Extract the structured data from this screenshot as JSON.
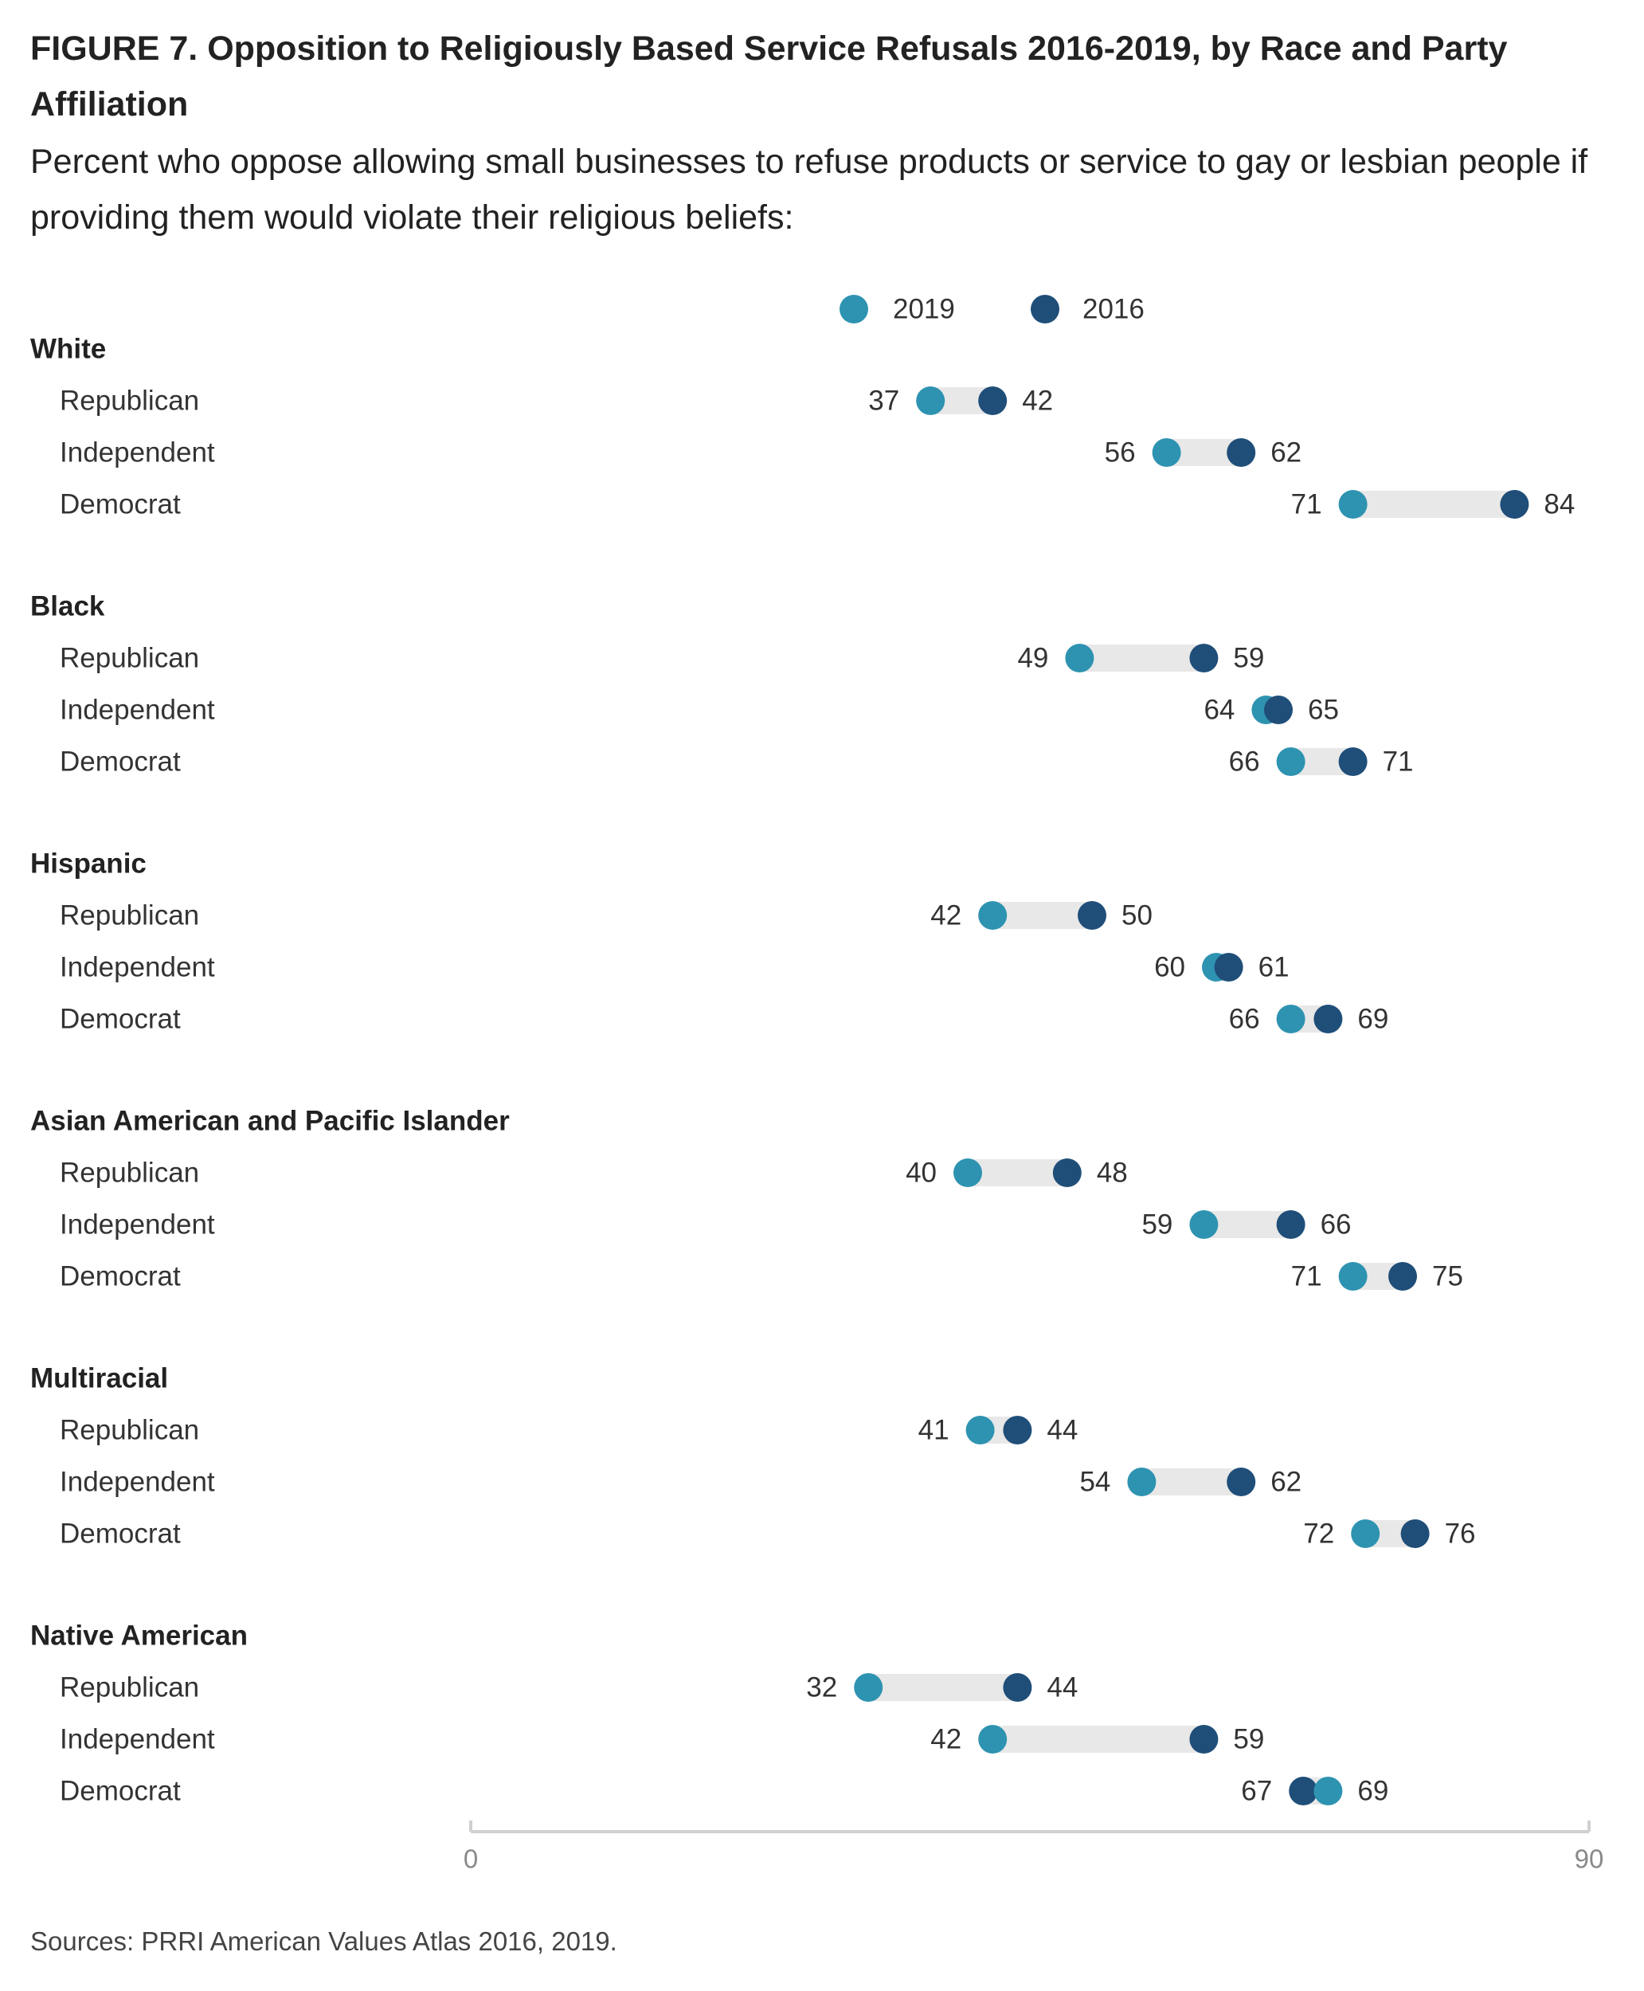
{
  "title": "FIGURE 7. Opposition to Religiously Based Service Refusals 2016-2019, by Race and Party Affiliation",
  "subtitle": "Percent who oppose allowing small businesses to refuse products or service to gay or lesbian people if providing them would violate their religious beliefs:",
  "source": "Sources: PRRI American Values Atlas 2016, 2019.",
  "colors": {
    "y2019": "#2e93b1",
    "y2016": "#1f4e79",
    "bar": "#e8e8e8",
    "axis": "#d0d0d0"
  },
  "chart_data": {
    "type": "dumbbell",
    "xlim": [
      0,
      90
    ],
    "x_ticks": [
      0,
      90
    ],
    "legend": {
      "placement": "top",
      "entries": [
        "2019",
        "2016"
      ]
    },
    "series_names": [
      "2019",
      "2016"
    ],
    "groups": [
      {
        "label": "White",
        "rows": [
          {
            "label": "Republican",
            "v2019": 37,
            "v2016": 42
          },
          {
            "label": "Independent",
            "v2019": 56,
            "v2016": 62
          },
          {
            "label": "Democrat",
            "v2019": 71,
            "v2016": 84
          }
        ]
      },
      {
        "label": "Black",
        "rows": [
          {
            "label": "Republican",
            "v2019": 49,
            "v2016": 59
          },
          {
            "label": "Independent",
            "v2019": 64,
            "v2016": 65
          },
          {
            "label": "Democrat",
            "v2019": 66,
            "v2016": 71
          }
        ]
      },
      {
        "label": "Hispanic",
        "rows": [
          {
            "label": "Republican",
            "v2019": 42,
            "v2016": 50
          },
          {
            "label": "Independent",
            "v2019": 60,
            "v2016": 61
          },
          {
            "label": "Democrat",
            "v2019": 66,
            "v2016": 69
          }
        ]
      },
      {
        "label": "Asian American and Pacific Islander",
        "rows": [
          {
            "label": "Republican",
            "v2019": 40,
            "v2016": 48
          },
          {
            "label": "Independent",
            "v2019": 59,
            "v2016": 66
          },
          {
            "label": "Democrat",
            "v2019": 71,
            "v2016": 75
          }
        ]
      },
      {
        "label": "Multiracial",
        "rows": [
          {
            "label": "Republican",
            "v2019": 41,
            "v2016": 44
          },
          {
            "label": "Independent",
            "v2019": 54,
            "v2016": 62
          },
          {
            "label": "Democrat",
            "v2019": 72,
            "v2016": 76
          }
        ]
      },
      {
        "label": "Native American",
        "rows": [
          {
            "label": "Republican",
            "v2019": 32,
            "v2016": 44
          },
          {
            "label": "Independent",
            "v2019": 42,
            "v2016": 59
          },
          {
            "label": "Democrat",
            "v2019": 69,
            "v2016": 67
          }
        ]
      }
    ]
  }
}
